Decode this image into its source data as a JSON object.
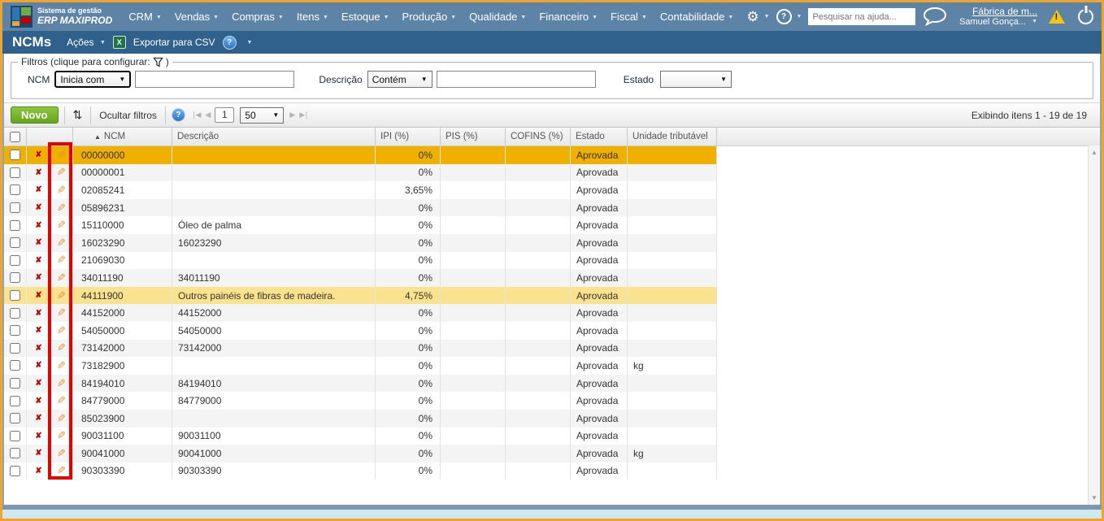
{
  "topbar": {
    "logo": {
      "line1": "Sistema de gestão",
      "line2": "ERP MAXIPROD"
    },
    "menus": [
      "CRM",
      "Vendas",
      "Compras",
      "Itens",
      "Estoque",
      "Produção",
      "Qualidade",
      "Financeiro",
      "Fiscal",
      "Contabilidade"
    ],
    "search_placeholder": "Pesquisar na ajuda...",
    "account": {
      "company": "Fábrica de m...",
      "user": "Samuel Gonça..."
    }
  },
  "titlebar": {
    "title": "NCMs",
    "actions_label": "Ações",
    "excel_glyph": "X",
    "export_label": "Exportar para CSV"
  },
  "filters": {
    "legend": "Filtros (clique para configurar:",
    "legend_close": ")",
    "ncm": {
      "label": "NCM",
      "operator": "Inicia com",
      "value": ""
    },
    "descricao": {
      "label": "Descrição",
      "operator": "Contém",
      "value": ""
    },
    "estado": {
      "label": "Estado",
      "value": ""
    }
  },
  "toolbar": {
    "new_label": "Novo",
    "hide_filters_label": "Ocultar filtros",
    "page_number": "1",
    "page_size": "50",
    "items_info": "Exibindo itens 1 - 19 de 19"
  },
  "table": {
    "columns": [
      "NCM",
      "Descrição",
      "IPI (%)",
      "PIS (%)",
      "COFINS (%)",
      "Estado",
      "Unidade tributável"
    ],
    "sort_column": "NCM",
    "rows": [
      {
        "ncm": "00000000",
        "descricao": "",
        "ipi": "0%",
        "pis": "",
        "cofins": "",
        "estado": "Aprovada",
        "unidade": "",
        "highlight": "selected"
      },
      {
        "ncm": "00000001",
        "descricao": "",
        "ipi": "0%",
        "pis": "",
        "cofins": "",
        "estado": "Aprovada",
        "unidade": ""
      },
      {
        "ncm": "02085241",
        "descricao": "",
        "ipi": "3,65%",
        "pis": "",
        "cofins": "",
        "estado": "Aprovada",
        "unidade": ""
      },
      {
        "ncm": "05896231",
        "descricao": "",
        "ipi": "0%",
        "pis": "",
        "cofins": "",
        "estado": "Aprovada",
        "unidade": ""
      },
      {
        "ncm": "15110000",
        "descricao": "Óleo de palma",
        "ipi": "0%",
        "pis": "",
        "cofins": "",
        "estado": "Aprovada",
        "unidade": ""
      },
      {
        "ncm": "16023290",
        "descricao": "16023290",
        "ipi": "0%",
        "pis": "",
        "cofins": "",
        "estado": "Aprovada",
        "unidade": ""
      },
      {
        "ncm": "21069030",
        "descricao": "",
        "ipi": "0%",
        "pis": "",
        "cofins": "",
        "estado": "Aprovada",
        "unidade": ""
      },
      {
        "ncm": "34011190",
        "descricao": "34011190",
        "ipi": "0%",
        "pis": "",
        "cofins": "",
        "estado": "Aprovada",
        "unidade": ""
      },
      {
        "ncm": "44111900",
        "descricao": "Outros painéis de fibras de madeira.",
        "ipi": "4,75%",
        "pis": "",
        "cofins": "",
        "estado": "Aprovada",
        "unidade": "",
        "highlight": "hover"
      },
      {
        "ncm": "44152000",
        "descricao": "44152000",
        "ipi": "0%",
        "pis": "",
        "cofins": "",
        "estado": "Aprovada",
        "unidade": ""
      },
      {
        "ncm": "54050000",
        "descricao": "54050000",
        "ipi": "0%",
        "pis": "",
        "cofins": "",
        "estado": "Aprovada",
        "unidade": ""
      },
      {
        "ncm": "73142000",
        "descricao": "73142000",
        "ipi": "0%",
        "pis": "",
        "cofins": "",
        "estado": "Aprovada",
        "unidade": ""
      },
      {
        "ncm": "73182900",
        "descricao": "",
        "ipi": "0%",
        "pis": "",
        "cofins": "",
        "estado": "Aprovada",
        "unidade": "kg"
      },
      {
        "ncm": "84194010",
        "descricao": "84194010",
        "ipi": "0%",
        "pis": "",
        "cofins": "",
        "estado": "Aprovada",
        "unidade": ""
      },
      {
        "ncm": "84779000",
        "descricao": "84779000",
        "ipi": "0%",
        "pis": "",
        "cofins": "",
        "estado": "Aprovada",
        "unidade": ""
      },
      {
        "ncm": "85023900",
        "descricao": "",
        "ipi": "0%",
        "pis": "",
        "cofins": "",
        "estado": "Aprovada",
        "unidade": ""
      },
      {
        "ncm": "90031100",
        "descricao": "90031100",
        "ipi": "0%",
        "pis": "",
        "cofins": "",
        "estado": "Aprovada",
        "unidade": ""
      },
      {
        "ncm": "90041000",
        "descricao": "90041000",
        "ipi": "0%",
        "pis": "",
        "cofins": "",
        "estado": "Aprovada",
        "unidade": "kg"
      },
      {
        "ncm": "90303390",
        "descricao": "90303390",
        "ipi": "0%",
        "pis": "",
        "cofins": "",
        "estado": "Aprovada",
        "unidade": ""
      }
    ]
  },
  "colors": {
    "frame_orange": "#efa42d",
    "topnav_blue": "#5d83a7",
    "titlebar_blue": "#30608c",
    "selected_row": "#f0b000",
    "hover_row": "#fbe28e",
    "novo_green": "#76b82a",
    "annotation_red": "#e60000"
  }
}
